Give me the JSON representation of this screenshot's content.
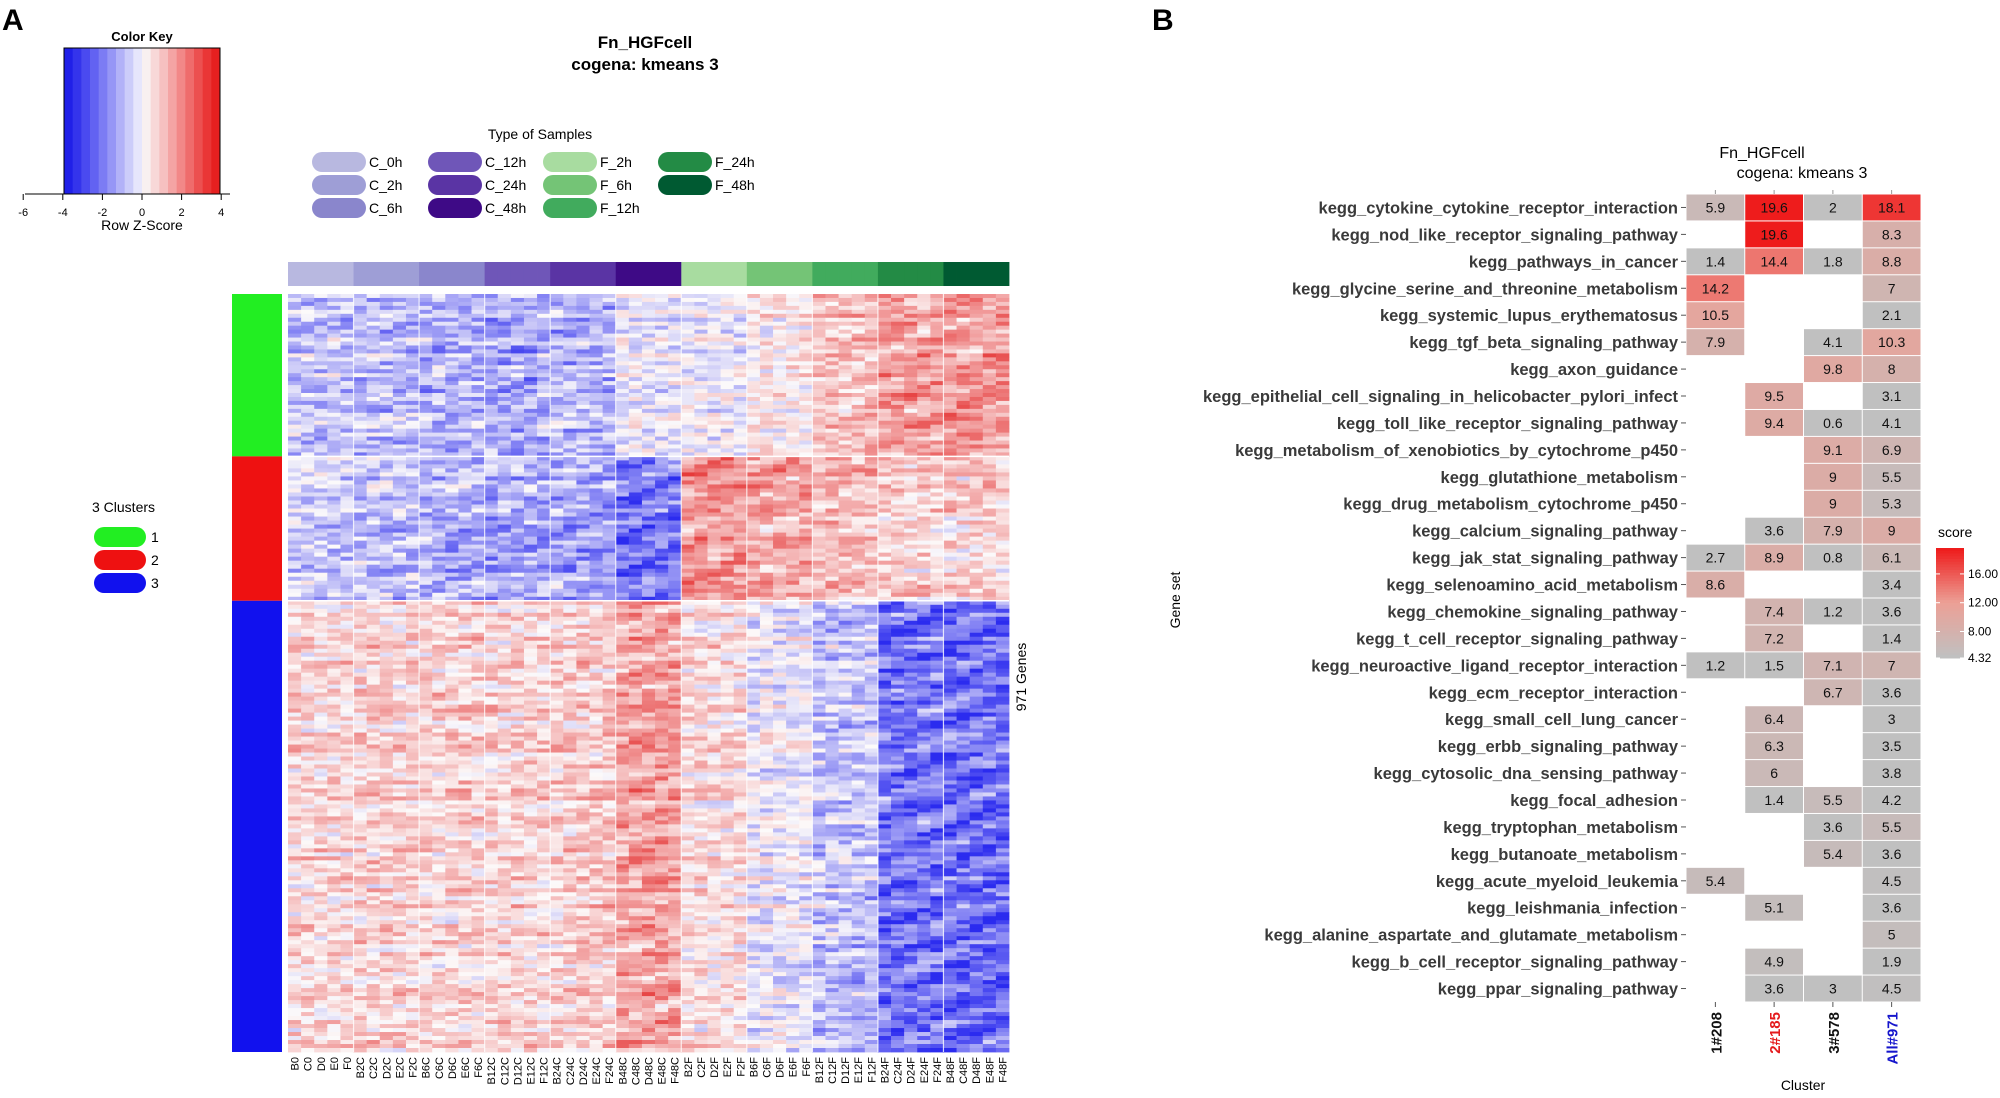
{
  "panel_a": {
    "letter": "A",
    "title_line1": "Fn_HGFcell",
    "title_line2": "cogena: kmeans 3",
    "color_key": {
      "title": "Color Key",
      "xlabel": "Row Z-Score",
      "ticks": [
        "-6",
        "-4",
        "-2",
        "0",
        "2",
        "4"
      ],
      "colors": [
        "#2020e8",
        "#3434ec",
        "#4a4af0",
        "#6262f2",
        "#7c7cf4",
        "#9696f6",
        "#b2b2f8",
        "#cccdfa",
        "#e6e6fc",
        "#f8f0f0",
        "#f8d8d8",
        "#f6c0c0",
        "#f4a4a4",
        "#f28888",
        "#ef6c6c",
        "#ec5050",
        "#ea3636",
        "#e62020"
      ]
    },
    "sample_legend": {
      "title": "Type of Samples",
      "items": [
        {
          "label": "C_0h",
          "color": "#b8b8e0"
        },
        {
          "label": "C_2h",
          "color": "#9e9ed6"
        },
        {
          "label": "C_6h",
          "color": "#8a86cc"
        },
        {
          "label": "C_12h",
          "color": "#6f56b8"
        },
        {
          "label": "C_24h",
          "color": "#5a34a4"
        },
        {
          "label": "C_48h",
          "color": "#3e0a86"
        },
        {
          "label": "F_2h",
          "color": "#a8dca0"
        },
        {
          "label": "F_6h",
          "color": "#74c476"
        },
        {
          "label": "F_12h",
          "color": "#41ab5d"
        },
        {
          "label": "F_24h",
          "color": "#238b45"
        },
        {
          "label": "F_48h",
          "color": "#005a32"
        }
      ]
    },
    "cluster_legend": {
      "title": "3 Clusters",
      "items": [
        {
          "label": "1",
          "color": "#22ee22"
        },
        {
          "label": "2",
          "color": "#ee1111"
        },
        {
          "label": "3",
          "color": "#1111ee"
        }
      ]
    },
    "gene_label": "971 Genes",
    "column_groups": [
      {
        "type": "C_0h",
        "columns": [
          "B0",
          "C0",
          "D0",
          "E0",
          "F0"
        ]
      },
      {
        "type": "C_2h",
        "columns": [
          "B2C",
          "C2C",
          "D2C",
          "E2C",
          "F2C"
        ]
      },
      {
        "type": "C_6h",
        "columns": [
          "B6C",
          "C6C",
          "D6C",
          "E6C",
          "F6C"
        ]
      },
      {
        "type": "C_12h",
        "columns": [
          "B12C",
          "C12C",
          "D12C",
          "E12C",
          "F12C"
        ]
      },
      {
        "type": "C_24h",
        "columns": [
          "B24C",
          "C24C",
          "D24C",
          "E24C",
          "F24C"
        ]
      },
      {
        "type": "C_48h",
        "columns": [
          "B48C",
          "C48C",
          "D48C",
          "E48C",
          "F48C"
        ]
      },
      {
        "type": "F_2h",
        "columns": [
          "B2F",
          "C2F",
          "D2F",
          "E2F",
          "F2F"
        ]
      },
      {
        "type": "F_6h",
        "columns": [
          "B6F",
          "C6F",
          "D6F",
          "E6F",
          "F6F"
        ]
      },
      {
        "type": "F_12h",
        "columns": [
          "B12F",
          "C12F",
          "D12F",
          "E12F",
          "F12F"
        ]
      },
      {
        "type": "F_24h",
        "columns": [
          "B24F",
          "C24F",
          "D24F",
          "E24F",
          "F24F"
        ]
      },
      {
        "type": "F_48h",
        "columns": [
          "B48F",
          "C48F",
          "D48F",
          "E48F",
          "F48F"
        ]
      }
    ],
    "cluster_rows": [
      {
        "cluster": "1",
        "genes": 208
      },
      {
        "cluster": "2",
        "genes": 185
      },
      {
        "cluster": "3",
        "genes": 578
      }
    ],
    "block_zscores": [
      [
        -1.0,
        -1.2,
        -1.3,
        -1.5,
        -1.2,
        -0.3,
        -0.2,
        0.3,
        1.2,
        1.8,
        2.0
      ],
      [
        -0.8,
        -1.1,
        -1.4,
        -1.5,
        -1.6,
        -2.4,
        2.0,
        1.6,
        1.2,
        0.8,
        0.8
      ],
      [
        0.7,
        0.8,
        0.8,
        0.8,
        0.9,
        1.8,
        0.6,
        -0.2,
        -1.0,
        -2.4,
        -2.6
      ]
    ]
  },
  "panel_b": {
    "letter": "B",
    "title_line1": "Fn_HGFcell",
    "title_line2": "cogena: kmeans 3",
    "y_axis_title": "Gene set",
    "x_axis_title": "Cluster",
    "legend": {
      "title": "score",
      "ticks": [
        "16.00",
        "12.00",
        "8.00",
        "4.32"
      ],
      "tick_values": [
        16.0,
        12.0,
        8.0,
        4.32
      ],
      "min": 4.32,
      "max": 19.6
    },
    "chart_data": {
      "type": "heatmap",
      "title": "Fn_HGFcell cogena: kmeans 3",
      "xlabel": "Cluster",
      "ylabel": "Gene set",
      "clusters": [
        {
          "label": "1#208",
          "color": "#111111"
        },
        {
          "label": "2#185",
          "color": "#e41a1c"
        },
        {
          "label": "3#578",
          "color": "#111111"
        },
        {
          "label": "All#971",
          "color": "#1515cc"
        }
      ],
      "rows": [
        {
          "label": "kegg_cytokine_cytokine_receptor_interaction",
          "values": [
            5.9,
            19.6,
            2,
            18.1
          ]
        },
        {
          "label": "kegg_nod_like_receptor_signaling_pathway",
          "values": [
            null,
            19.6,
            null,
            8.3
          ]
        },
        {
          "label": "kegg_pathways_in_cancer",
          "values": [
            1.4,
            14.4,
            1.8,
            8.8
          ]
        },
        {
          "label": "kegg_glycine_serine_and_threonine_metabolism",
          "values": [
            14.2,
            null,
            null,
            7
          ]
        },
        {
          "label": "kegg_systemic_lupus_erythematosus",
          "values": [
            10.5,
            null,
            null,
            2.1
          ]
        },
        {
          "label": "kegg_tgf_beta_signaling_pathway",
          "values": [
            7.9,
            null,
            4.1,
            10.3
          ]
        },
        {
          "label": "kegg_axon_guidance",
          "values": [
            null,
            null,
            9.8,
            8
          ]
        },
        {
          "label": "kegg_epithelial_cell_signaling_in_helicobacter_pylori_infect",
          "values": [
            null,
            9.5,
            null,
            3.1
          ]
        },
        {
          "label": "kegg_toll_like_receptor_signaling_pathway",
          "values": [
            null,
            9.4,
            0.6,
            4.1
          ]
        },
        {
          "label": "kegg_metabolism_of_xenobiotics_by_cytochrome_p450",
          "values": [
            null,
            null,
            9.1,
            6.9
          ]
        },
        {
          "label": "kegg_glutathione_metabolism",
          "values": [
            null,
            null,
            9,
            5.5
          ]
        },
        {
          "label": "kegg_drug_metabolism_cytochrome_p450",
          "values": [
            null,
            null,
            9,
            5.3
          ]
        },
        {
          "label": "kegg_calcium_signaling_pathway",
          "values": [
            null,
            3.6,
            7.9,
            9
          ]
        },
        {
          "label": "kegg_jak_stat_signaling_pathway",
          "values": [
            2.7,
            8.9,
            0.8,
            6.1
          ]
        },
        {
          "label": "kegg_selenoamino_acid_metabolism",
          "values": [
            8.6,
            null,
            null,
            3.4
          ]
        },
        {
          "label": "kegg_chemokine_signaling_pathway",
          "values": [
            null,
            7.4,
            1.2,
            3.6
          ]
        },
        {
          "label": "kegg_t_cell_receptor_signaling_pathway",
          "values": [
            null,
            7.2,
            null,
            1.4
          ]
        },
        {
          "label": "kegg_neuroactive_ligand_receptor_interaction",
          "values": [
            1.2,
            1.5,
            7.1,
            7
          ]
        },
        {
          "label": "kegg_ecm_receptor_interaction",
          "values": [
            null,
            null,
            6.7,
            3.6
          ]
        },
        {
          "label": "kegg_small_cell_lung_cancer",
          "values": [
            null,
            6.4,
            null,
            3
          ]
        },
        {
          "label": "kegg_erbb_signaling_pathway",
          "values": [
            null,
            6.3,
            null,
            3.5
          ]
        },
        {
          "label": "kegg_cytosolic_dna_sensing_pathway",
          "values": [
            null,
            6,
            null,
            3.8
          ]
        },
        {
          "label": "kegg_focal_adhesion",
          "values": [
            null,
            1.4,
            5.5,
            4.2
          ]
        },
        {
          "label": "kegg_tryptophan_metabolism",
          "values": [
            null,
            null,
            3.6,
            5.5
          ]
        },
        {
          "label": "kegg_butanoate_metabolism",
          "values": [
            null,
            null,
            5.4,
            3.6
          ]
        },
        {
          "label": "kegg_acute_myeloid_leukemia",
          "values": [
            5.4,
            null,
            null,
            4.5
          ]
        },
        {
          "label": "kegg_leishmania_infection",
          "values": [
            null,
            5.1,
            null,
            3.6
          ]
        },
        {
          "label": "kegg_alanine_aspartate_and_glutamate_metabolism",
          "values": [
            null,
            null,
            null,
            5
          ]
        },
        {
          "label": "kegg_b_cell_receptor_signaling_pathway",
          "values": [
            null,
            4.9,
            null,
            1.9
          ]
        },
        {
          "label": "kegg_ppar_signaling_pathway",
          "values": [
            null,
            3.6,
            3,
            4.5
          ]
        }
      ]
    }
  }
}
